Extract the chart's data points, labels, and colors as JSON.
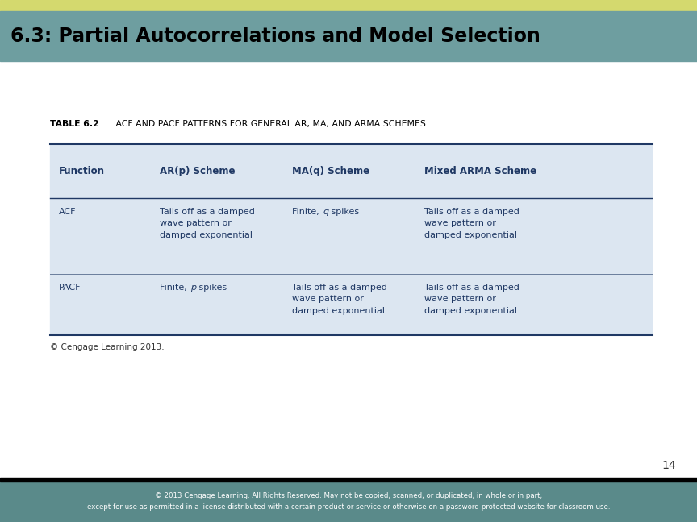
{
  "title": "6.3: Partial Autocorrelations and Model Selection",
  "title_bg_color": "#6e9ea0",
  "title_top_stripe_color": "#d4d96e",
  "title_text_color": "#000000",
  "table_caption_bold": "TABLE 6.2",
  "table_caption_rest": "   ACF AND PACF PATTERNS FOR GENERAL AR, MA, AND ARMA SCHEMES",
  "table_bg_color": "#dce6f1",
  "table_border_color": "#1f3864",
  "header_display": [
    "Function",
    "AR(p) Scheme",
    "MA(q) Scheme",
    "Mixed ARMA Scheme"
  ],
  "rows": [
    [
      "ACF",
      "Tails off as a damped\nwave pattern or\ndamped exponential",
      "Finite, q spikes",
      "Tails off as a damped\nwave pattern or\ndamped exponential"
    ],
    [
      "PACF",
      "Finite, p spikes",
      "Tails off as a damped\nwave pattern or\ndamped exponential",
      "Tails off as a damped\nwave pattern or\ndamped exponential"
    ]
  ],
  "copyright_table": "© Cengage Learning 2013.",
  "page_number": "14",
  "footer_bg_color": "#5a8a8a",
  "footer_text": "© 2013 Cengage Learning. All Rights Reserved. May not be copied, scanned, or duplicated, in whole or in part,\nexcept for use as permitted in a license distributed with a certain product or service or otherwise on a password-protected website for classroom use.",
  "footer_text_color": "#ffffff",
  "main_bg_color": "#ffffff",
  "text_color": "#1f3864"
}
